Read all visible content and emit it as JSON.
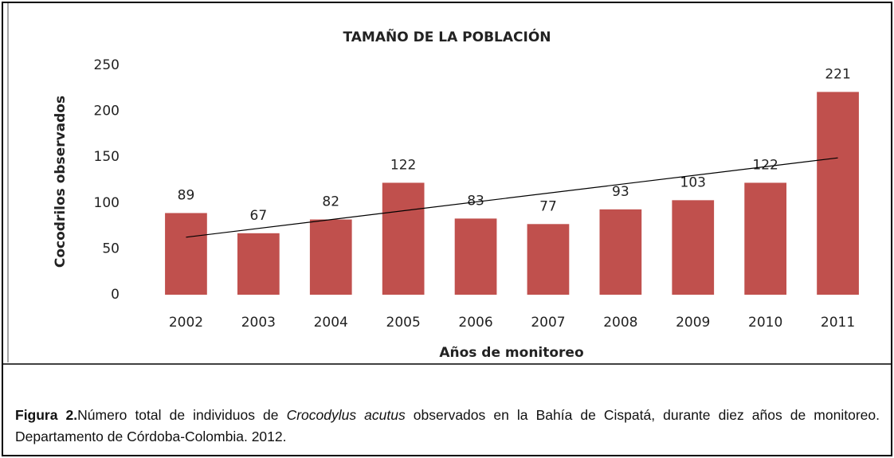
{
  "chart_data": {
    "type": "bar",
    "title": "TAMAÑO DE LA POBLACIÓN",
    "xlabel": "Años de monitoreo",
    "ylabel": "Cocodrilos observados",
    "categories": [
      "2002",
      "2003",
      "2004",
      "2005",
      "2006",
      "2007",
      "2008",
      "2009",
      "2010",
      "2011"
    ],
    "values": [
      89,
      67,
      82,
      122,
      83,
      77,
      93,
      103,
      122,
      221
    ],
    "color": "#c0504d",
    "ylim": [
      0,
      250
    ],
    "yticks": [
      0,
      50,
      100,
      150,
      200,
      250
    ],
    "grid": false,
    "data_labels": true,
    "trendline": "linear"
  },
  "caption": {
    "label": "Figura 2.",
    "before": "Número total de individuos de ",
    "species": "Crocodylus acutus",
    "after": " observados en la Bahía de Cispatá, durante diez años de monitoreo. Departamento de Córdoba-Colombia. 2012."
  }
}
